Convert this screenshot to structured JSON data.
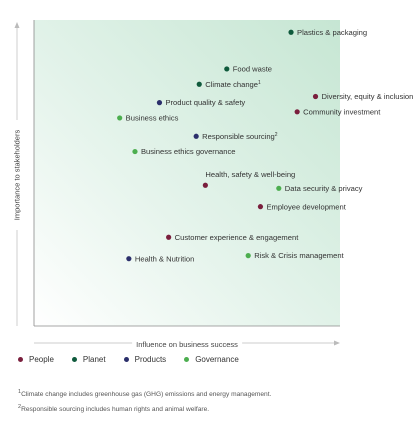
{
  "colors": {
    "people": "#7a1f3d",
    "planet": "#0f5a3c",
    "products": "#2b2f6b",
    "governance": "#4cae4f",
    "bg_start": "#e8f5ee",
    "bg_end": "#c9e7d6"
  },
  "chart_data": {
    "type": "scatter",
    "xlabel": "Influence on business success",
    "ylabel": "Importance to stakeholders",
    "xlim": [
      0,
      100
    ],
    "ylim": [
      0,
      100
    ],
    "grid": false,
    "legend_placement": "bottom-left",
    "legend": [
      {
        "name": "People",
        "category": "people"
      },
      {
        "name": "Planet",
        "category": "planet"
      },
      {
        "name": "Products",
        "category": "products"
      },
      {
        "name": "Governance",
        "category": "governance"
      }
    ],
    "points": [
      {
        "label": "Plastics & packaging",
        "sup": "",
        "category": "planet",
        "x": 84,
        "y": 96
      },
      {
        "label": "Food waste",
        "sup": "",
        "category": "planet",
        "x": 63,
        "y": 84
      },
      {
        "label": "Climate change",
        "sup": "1",
        "category": "planet",
        "x": 54,
        "y": 79
      },
      {
        "label": "Diversity, equity & inclusion",
        "sup": "",
        "category": "people",
        "x": 92,
        "y": 75
      },
      {
        "label": "Product quality & safety",
        "sup": "",
        "category": "products",
        "x": 41,
        "y": 73
      },
      {
        "label": "Community investment",
        "sup": "",
        "category": "people",
        "x": 86,
        "y": 70
      },
      {
        "label": "Business ethics",
        "sup": "",
        "category": "governance",
        "x": 28,
        "y": 68
      },
      {
        "label": "Responsible sourcing",
        "sup": "2",
        "category": "products",
        "x": 53,
        "y": 62
      },
      {
        "label": "Business ethics governance",
        "sup": "",
        "category": "governance",
        "x": 33,
        "y": 57
      }
    ],
    "points2": [
      {
        "label": "Health, safety & well-being",
        "sup": "",
        "category": "people",
        "x": 56,
        "y": 46,
        "label_above": true
      },
      {
        "label": "Data security & privacy",
        "sup": "",
        "category": "governance",
        "x": 80,
        "y": 45
      },
      {
        "label": "Employee development",
        "sup": "",
        "category": "people",
        "x": 74,
        "y": 39
      },
      {
        "label": "Customer experience & engagement",
        "sup": "",
        "category": "people",
        "x": 44,
        "y": 29
      },
      {
        "label": "Risk & Crisis management",
        "sup": "",
        "category": "governance",
        "x": 70,
        "y": 23
      },
      {
        "label": "Health & Nutrition",
        "sup": "",
        "category": "products",
        "x": 31,
        "y": 22
      }
    ]
  },
  "footnotes": [
    {
      "sup": "1",
      "text": "Climate change includes greenhouse gas (GHG) emissions and energy management."
    },
    {
      "sup": "2",
      "text": "Responsible sourcing includes human rights and animal welfare."
    }
  ]
}
